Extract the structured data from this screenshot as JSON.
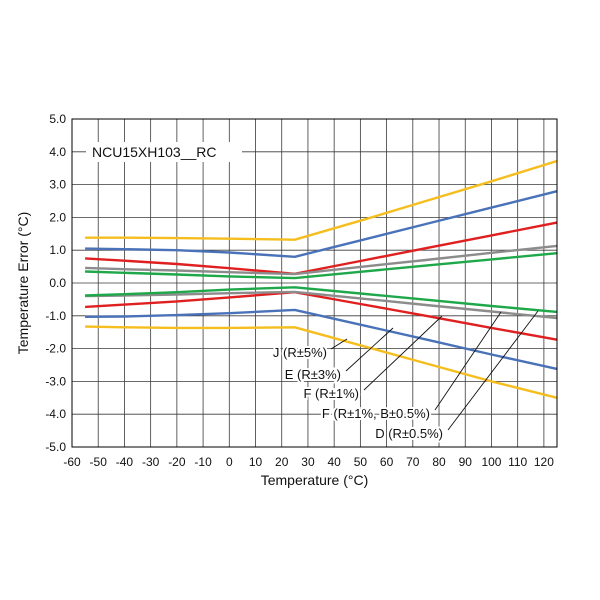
{
  "chart_data": {
    "type": "line",
    "title": "NCU15XH103__RC",
    "xlabel": "Temperature (°C)",
    "ylabel": "Temperature Error (°C)",
    "xlim": [
      -60,
      125
    ],
    "ylim": [
      -5.0,
      5.0
    ],
    "xticks": [
      -60,
      -50,
      -40,
      -30,
      -20,
      -10,
      0,
      10,
      20,
      30,
      40,
      50,
      60,
      70,
      80,
      90,
      100,
      110,
      120
    ],
    "yticks": [
      5.0,
      4.0,
      3.0,
      2.0,
      1.0,
      0.0,
      -1.0,
      -2.0,
      -3.0,
      -4.0,
      -5.0
    ],
    "ytick_labels": [
      "5.0",
      "4.0",
      "3.0",
      "2.0",
      "1.0",
      "0.0",
      "-1.0",
      "-2.0",
      "-3.0",
      "-4.0",
      "-5.0"
    ],
    "grid": true,
    "series": [
      {
        "name": "J (R±5%)",
        "color": "#F5BE1E",
        "upper": {
          "x": [
            -55,
            -40,
            -20,
            0,
            25,
            50,
            75,
            100,
            125
          ],
          "y": [
            1.38,
            1.38,
            1.37,
            1.35,
            1.32,
            1.9,
            2.5,
            3.1,
            3.72
          ]
        },
        "lower": {
          "x": [
            -55,
            -40,
            -20,
            0,
            25,
            50,
            75,
            100,
            125
          ],
          "y": [
            -1.33,
            -1.35,
            -1.37,
            -1.37,
            -1.35,
            -1.9,
            -2.45,
            -3.0,
            -3.5
          ]
        }
      },
      {
        "name": "E (R±3%)",
        "color": "#4A72B8",
        "upper": {
          "x": [
            -55,
            -40,
            -20,
            0,
            25,
            50,
            75,
            100,
            125
          ],
          "y": [
            1.05,
            1.03,
            1.0,
            0.93,
            0.8,
            1.3,
            1.8,
            2.3,
            2.8
          ]
        },
        "lower": {
          "x": [
            -55,
            -40,
            -20,
            0,
            25,
            50,
            75,
            100,
            125
          ],
          "y": [
            -1.03,
            -1.02,
            -0.98,
            -0.92,
            -0.82,
            -1.27,
            -1.72,
            -2.18,
            -2.62
          ]
        }
      },
      {
        "name": "F (R±1%)",
        "color": "#E02020",
        "upper": {
          "x": [
            -55,
            -40,
            -20,
            0,
            25,
            50,
            75,
            100,
            125
          ],
          "y": [
            0.75,
            0.68,
            0.58,
            0.45,
            0.28,
            0.67,
            1.06,
            1.45,
            1.84
          ]
        },
        "lower": {
          "x": [
            -55,
            -40,
            -20,
            0,
            25,
            50,
            75,
            100,
            125
          ],
          "y": [
            -0.73,
            -0.66,
            -0.56,
            -0.44,
            -0.28,
            -0.64,
            -1.0,
            -1.37,
            -1.73
          ]
        }
      },
      {
        "name": "F (R±1%, B±0.5%)",
        "color": "#8C8C8C",
        "upper": {
          "x": [
            -55,
            -40,
            -20,
            0,
            25,
            50,
            75,
            100,
            125
          ],
          "y": [
            0.46,
            0.42,
            0.38,
            0.33,
            0.27,
            0.49,
            0.7,
            0.92,
            1.13
          ]
        },
        "lower": {
          "x": [
            -55,
            -40,
            -20,
            0,
            25,
            50,
            75,
            100,
            125
          ],
          "y": [
            -0.4,
            -0.38,
            -0.35,
            -0.31,
            -0.27,
            -0.47,
            -0.67,
            -0.87,
            -1.07
          ]
        }
      },
      {
        "name": "D (R±0.5%)",
        "color": "#1EA84A",
        "upper": {
          "x": [
            -55,
            -40,
            -20,
            0,
            25,
            50,
            75,
            100,
            125
          ],
          "y": [
            0.35,
            0.31,
            0.26,
            0.2,
            0.15,
            0.34,
            0.53,
            0.72,
            0.91
          ]
        },
        "lower": {
          "x": [
            -55,
            -40,
            -20,
            0,
            25,
            50,
            75,
            100,
            125
          ],
          "y": [
            -0.38,
            -0.34,
            -0.28,
            -0.2,
            -0.13,
            -0.32,
            -0.51,
            -0.7,
            -0.88
          ]
        }
      }
    ],
    "annotations": [
      {
        "text": "J (R±5%)",
        "color": "#F5BE1E"
      },
      {
        "text": "E (R±3%)",
        "color": "#4A72B8"
      },
      {
        "text": "F (R±1%)",
        "color": "#E02020"
      },
      {
        "text": "F (R±1%, B±0.5%)",
        "color": "#8C8C8C"
      },
      {
        "text": "D (R±0.5%)",
        "color": "#1EA84A"
      }
    ]
  }
}
